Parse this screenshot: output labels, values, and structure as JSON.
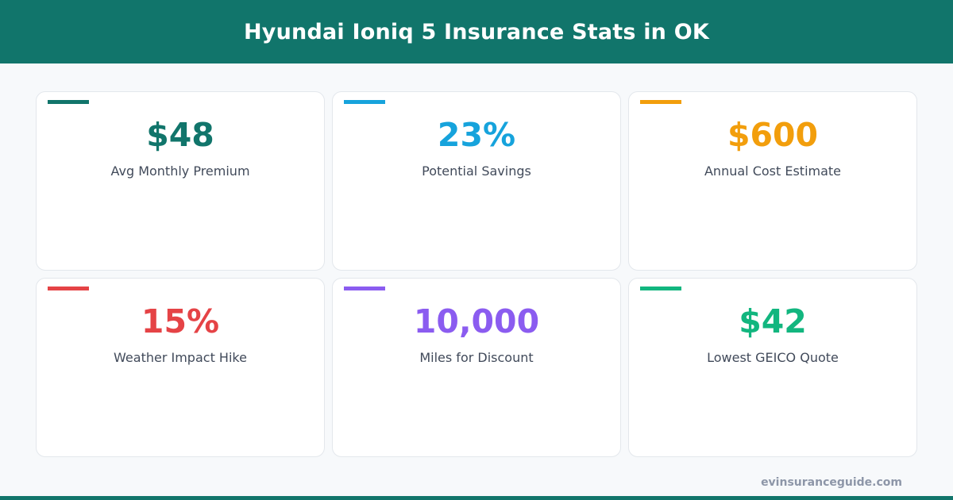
{
  "header": {
    "title": "Hyundai Ioniq 5 Insurance Stats in OK"
  },
  "stats": [
    {
      "value": "$48",
      "label": "Avg Monthly Premium",
      "color": "#11756b"
    },
    {
      "value": "23%",
      "label": "Potential Savings",
      "color": "#16a3dc"
    },
    {
      "value": "$600",
      "label": "Annual Cost Estimate",
      "color": "#f29e0c"
    },
    {
      "value": "15%",
      "label": "Weather Impact Hike",
      "color": "#e54346"
    },
    {
      "value": "10,000",
      "label": "Miles for Discount",
      "color": "#8b5cf0"
    },
    {
      "value": "$42",
      "label": "Lowest GEICO Quote",
      "color": "#12b67f"
    }
  ],
  "footer": {
    "site": "evinsuranceguide.com"
  }
}
